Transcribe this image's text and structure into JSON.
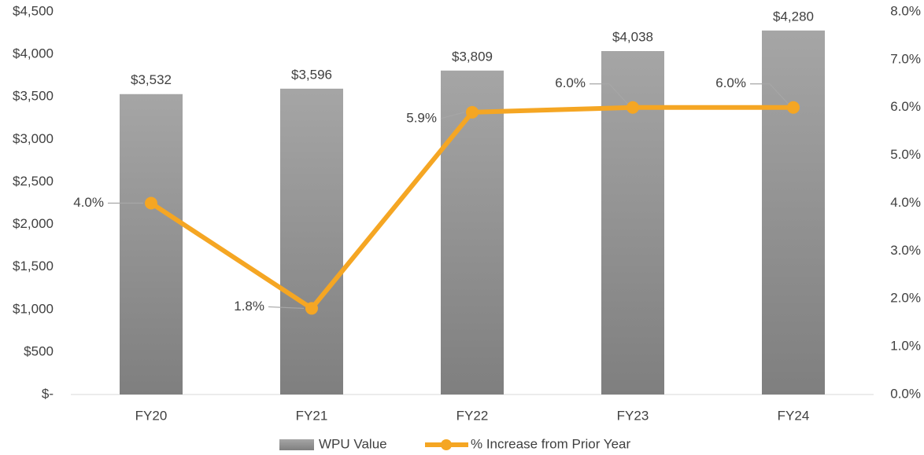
{
  "chart_data": {
    "type": "bar_line",
    "categories": [
      "FY20",
      "FY21",
      "FY22",
      "FY23",
      "FY24"
    ],
    "series": [
      {
        "name": "WPU Value",
        "type": "bar",
        "color": "#7f7f7f",
        "values": [
          3532,
          3596,
          3809,
          4038,
          4280
        ],
        "value_labels": [
          "$3,532",
          "$3,596",
          "$3,809",
          "$4,038",
          "$4,280"
        ]
      },
      {
        "name": "% Increase from Prior Year",
        "type": "line",
        "axis": "y2",
        "color": "#f5a623",
        "values": [
          4.0,
          1.8,
          5.9,
          6.0,
          6.0
        ],
        "value_labels": [
          "4.0%",
          "1.8%",
          "5.9%",
          "6.0%",
          "6.0%"
        ]
      }
    ],
    "ylim": [
      0,
      4500
    ],
    "yticks": [
      {
        "value": 0,
        "label": "$-"
      },
      {
        "value": 500,
        "label": "$500"
      },
      {
        "value": 1000,
        "label": "$1,000"
      },
      {
        "value": 1500,
        "label": "$1,500"
      },
      {
        "value": 2000,
        "label": "$2,000"
      },
      {
        "value": 2500,
        "label": "$2,500"
      },
      {
        "value": 3000,
        "label": "$3,000"
      },
      {
        "value": 3500,
        "label": "$3,500"
      },
      {
        "value": 4000,
        "label": "$4,000"
      },
      {
        "value": 4500,
        "label": "$4,500"
      }
    ],
    "y2lim": [
      0,
      8
    ],
    "y2ticks": [
      {
        "value": 0,
        "label": "0.0%"
      },
      {
        "value": 1,
        "label": "1.0%"
      },
      {
        "value": 2,
        "label": "2.0%"
      },
      {
        "value": 3,
        "label": "3.0%"
      },
      {
        "value": 4,
        "label": "4.0%"
      },
      {
        "value": 5,
        "label": "5.0%"
      },
      {
        "value": 6,
        "label": "6.0%"
      },
      {
        "value": 7,
        "label": "7.0%"
      },
      {
        "value": 8,
        "label": "8.0%"
      }
    ],
    "legend": "bottom",
    "grid": false
  }
}
